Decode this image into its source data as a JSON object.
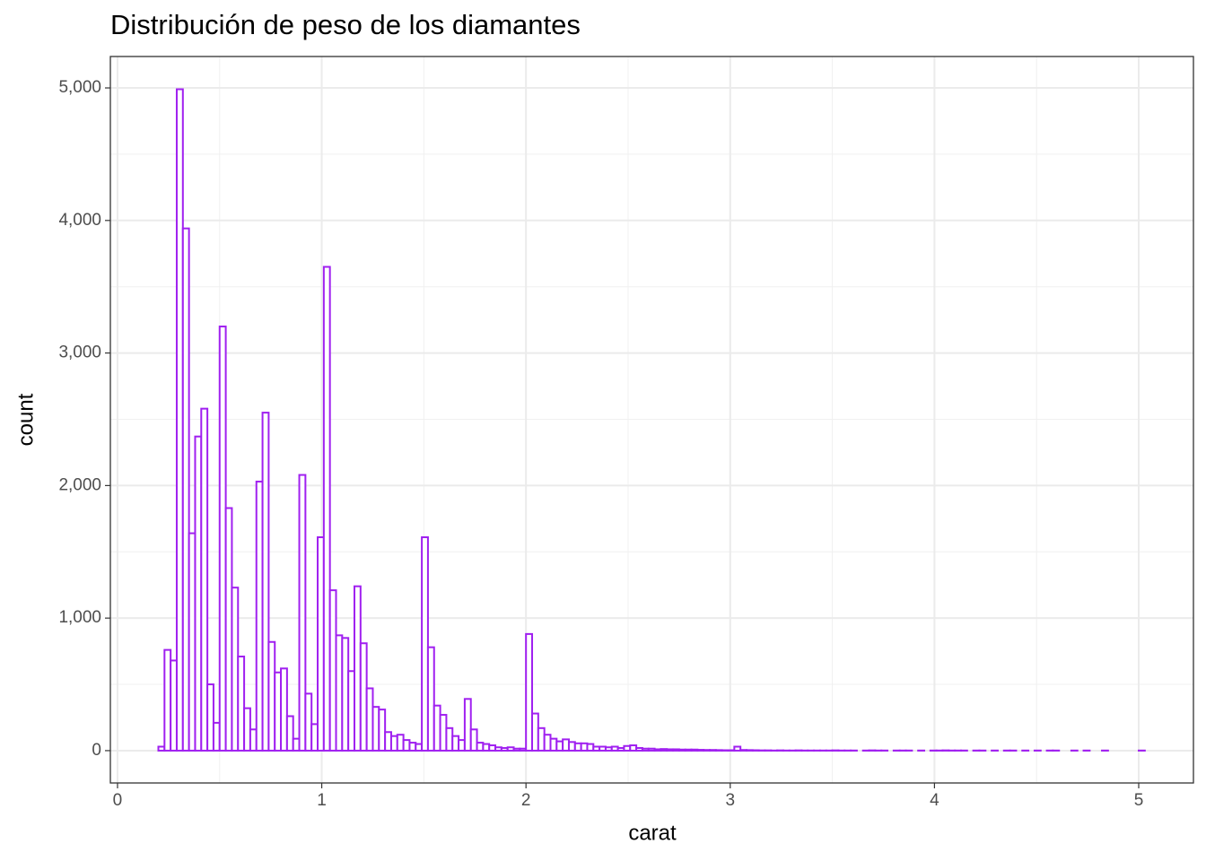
{
  "chart_data": {
    "type": "histogram",
    "title": "Distribución de peso de los diamantes",
    "x_label": "carat",
    "y_label": "count",
    "color": "#a020f0",
    "fill": "#ffffff",
    "grid": true,
    "minor_grid": true,
    "xlim": [
      -0.035,
      5.268
    ],
    "ylim": [
      -244,
      5237
    ],
    "xticks": [
      0,
      1,
      2,
      3,
      4,
      5
    ],
    "yticks": [
      0,
      {
        "value": 1000,
        "label": "1,000"
      },
      {
        "value": 2000,
        "label": "2,000"
      },
      {
        "value": 3000,
        "label": "3,000"
      },
      {
        "value": 4000,
        "label": "4,000"
      },
      {
        "value": 5000,
        "label": "5,000"
      }
    ],
    "bins": [
      0.2,
      0.23,
      0.26,
      0.29,
      0.32,
      0.35,
      0.38,
      0.41,
      0.44,
      0.47,
      0.5,
      0.53,
      0.56,
      0.59,
      0.62,
      0.65,
      0.68,
      0.71,
      0.74,
      0.77,
      0.8,
      0.83,
      0.86,
      0.89,
      0.92,
      0.95,
      0.98,
      1.01,
      1.04,
      1.07,
      1.1,
      1.13,
      1.16,
      1.19,
      1.22,
      1.25,
      1.28,
      1.31,
      1.34,
      1.37,
      1.4,
      1.43,
      1.46,
      1.49,
      1.52,
      1.55,
      1.58,
      1.61,
      1.64,
      1.67,
      1.7,
      1.73,
      1.76,
      1.79,
      1.82,
      1.85,
      1.88,
      1.91,
      1.94,
      1.97,
      2.0,
      2.03,
      2.06,
      2.09,
      2.12,
      2.15,
      2.18,
      2.21,
      2.24,
      2.27,
      2.3,
      2.33,
      2.36,
      2.39,
      2.42,
      2.45,
      2.48,
      2.51,
      2.54,
      2.57,
      2.6,
      2.63,
      2.66,
      2.69,
      2.72,
      2.75,
      2.78,
      2.81,
      2.84,
      2.87,
      2.9,
      2.93,
      2.96,
      2.99,
      3.02,
      3.05,
      3.08,
      3.11,
      3.14,
      3.17,
      3.2,
      3.23,
      3.26,
      3.29,
      3.32,
      3.35,
      3.38,
      3.41,
      3.44,
      3.47,
      3.5,
      3.53,
      3.56,
      3.59,
      3.62,
      3.65,
      3.68,
      3.71,
      3.74,
      3.77,
      3.8,
      3.83,
      3.86,
      3.89,
      3.92,
      3.95,
      3.98,
      4.01,
      4.04,
      4.07,
      4.1,
      4.13,
      4.16,
      4.19,
      4.22,
      4.25,
      4.28,
      4.31,
      4.34,
      4.37,
      4.4,
      4.43,
      4.46,
      4.49,
      4.52,
      4.55,
      4.58,
      4.61,
      4.64,
      4.67,
      4.7,
      4.73,
      4.76,
      4.79,
      4.82,
      4.85,
      4.88,
      4.91,
      4.94,
      4.97,
      5.0,
      5.03
    ],
    "values": [
      30,
      760,
      680,
      4990,
      3940,
      1640,
      2370,
      2580,
      500,
      210,
      3200,
      1830,
      1230,
      710,
      320,
      160,
      2030,
      2550,
      820,
      590,
      620,
      260,
      90,
      2080,
      430,
      200,
      1610,
      3650,
      1210,
      870,
      850,
      600,
      1240,
      810,
      470,
      330,
      310,
      140,
      110,
      120,
      80,
      60,
      50,
      1610,
      780,
      340,
      270,
      170,
      110,
      80,
      390,
      160,
      60,
      50,
      40,
      25,
      20,
      25,
      15,
      15,
      880,
      280,
      170,
      120,
      90,
      70,
      85,
      65,
      55,
      55,
      50,
      30,
      30,
      25,
      30,
      20,
      35,
      40,
      20,
      15,
      15,
      10,
      12,
      10,
      10,
      8,
      8,
      8,
      6,
      5,
      5,
      4,
      3,
      3,
      30,
      5,
      4,
      3,
      2,
      2,
      1,
      2,
      1,
      1,
      2,
      1,
      1,
      1,
      1,
      1,
      2,
      1,
      1,
      1,
      0,
      1,
      2,
      1,
      1,
      0,
      1,
      1,
      1,
      0,
      1,
      0,
      1,
      1,
      2,
      1,
      1,
      1,
      0,
      1,
      1,
      0,
      1,
      0,
      1,
      1,
      0,
      1,
      0,
      1,
      0,
      1,
      1,
      0,
      0,
      1,
      0,
      1,
      0,
      0,
      1,
      0,
      0,
      0,
      0,
      0,
      1
    ]
  }
}
